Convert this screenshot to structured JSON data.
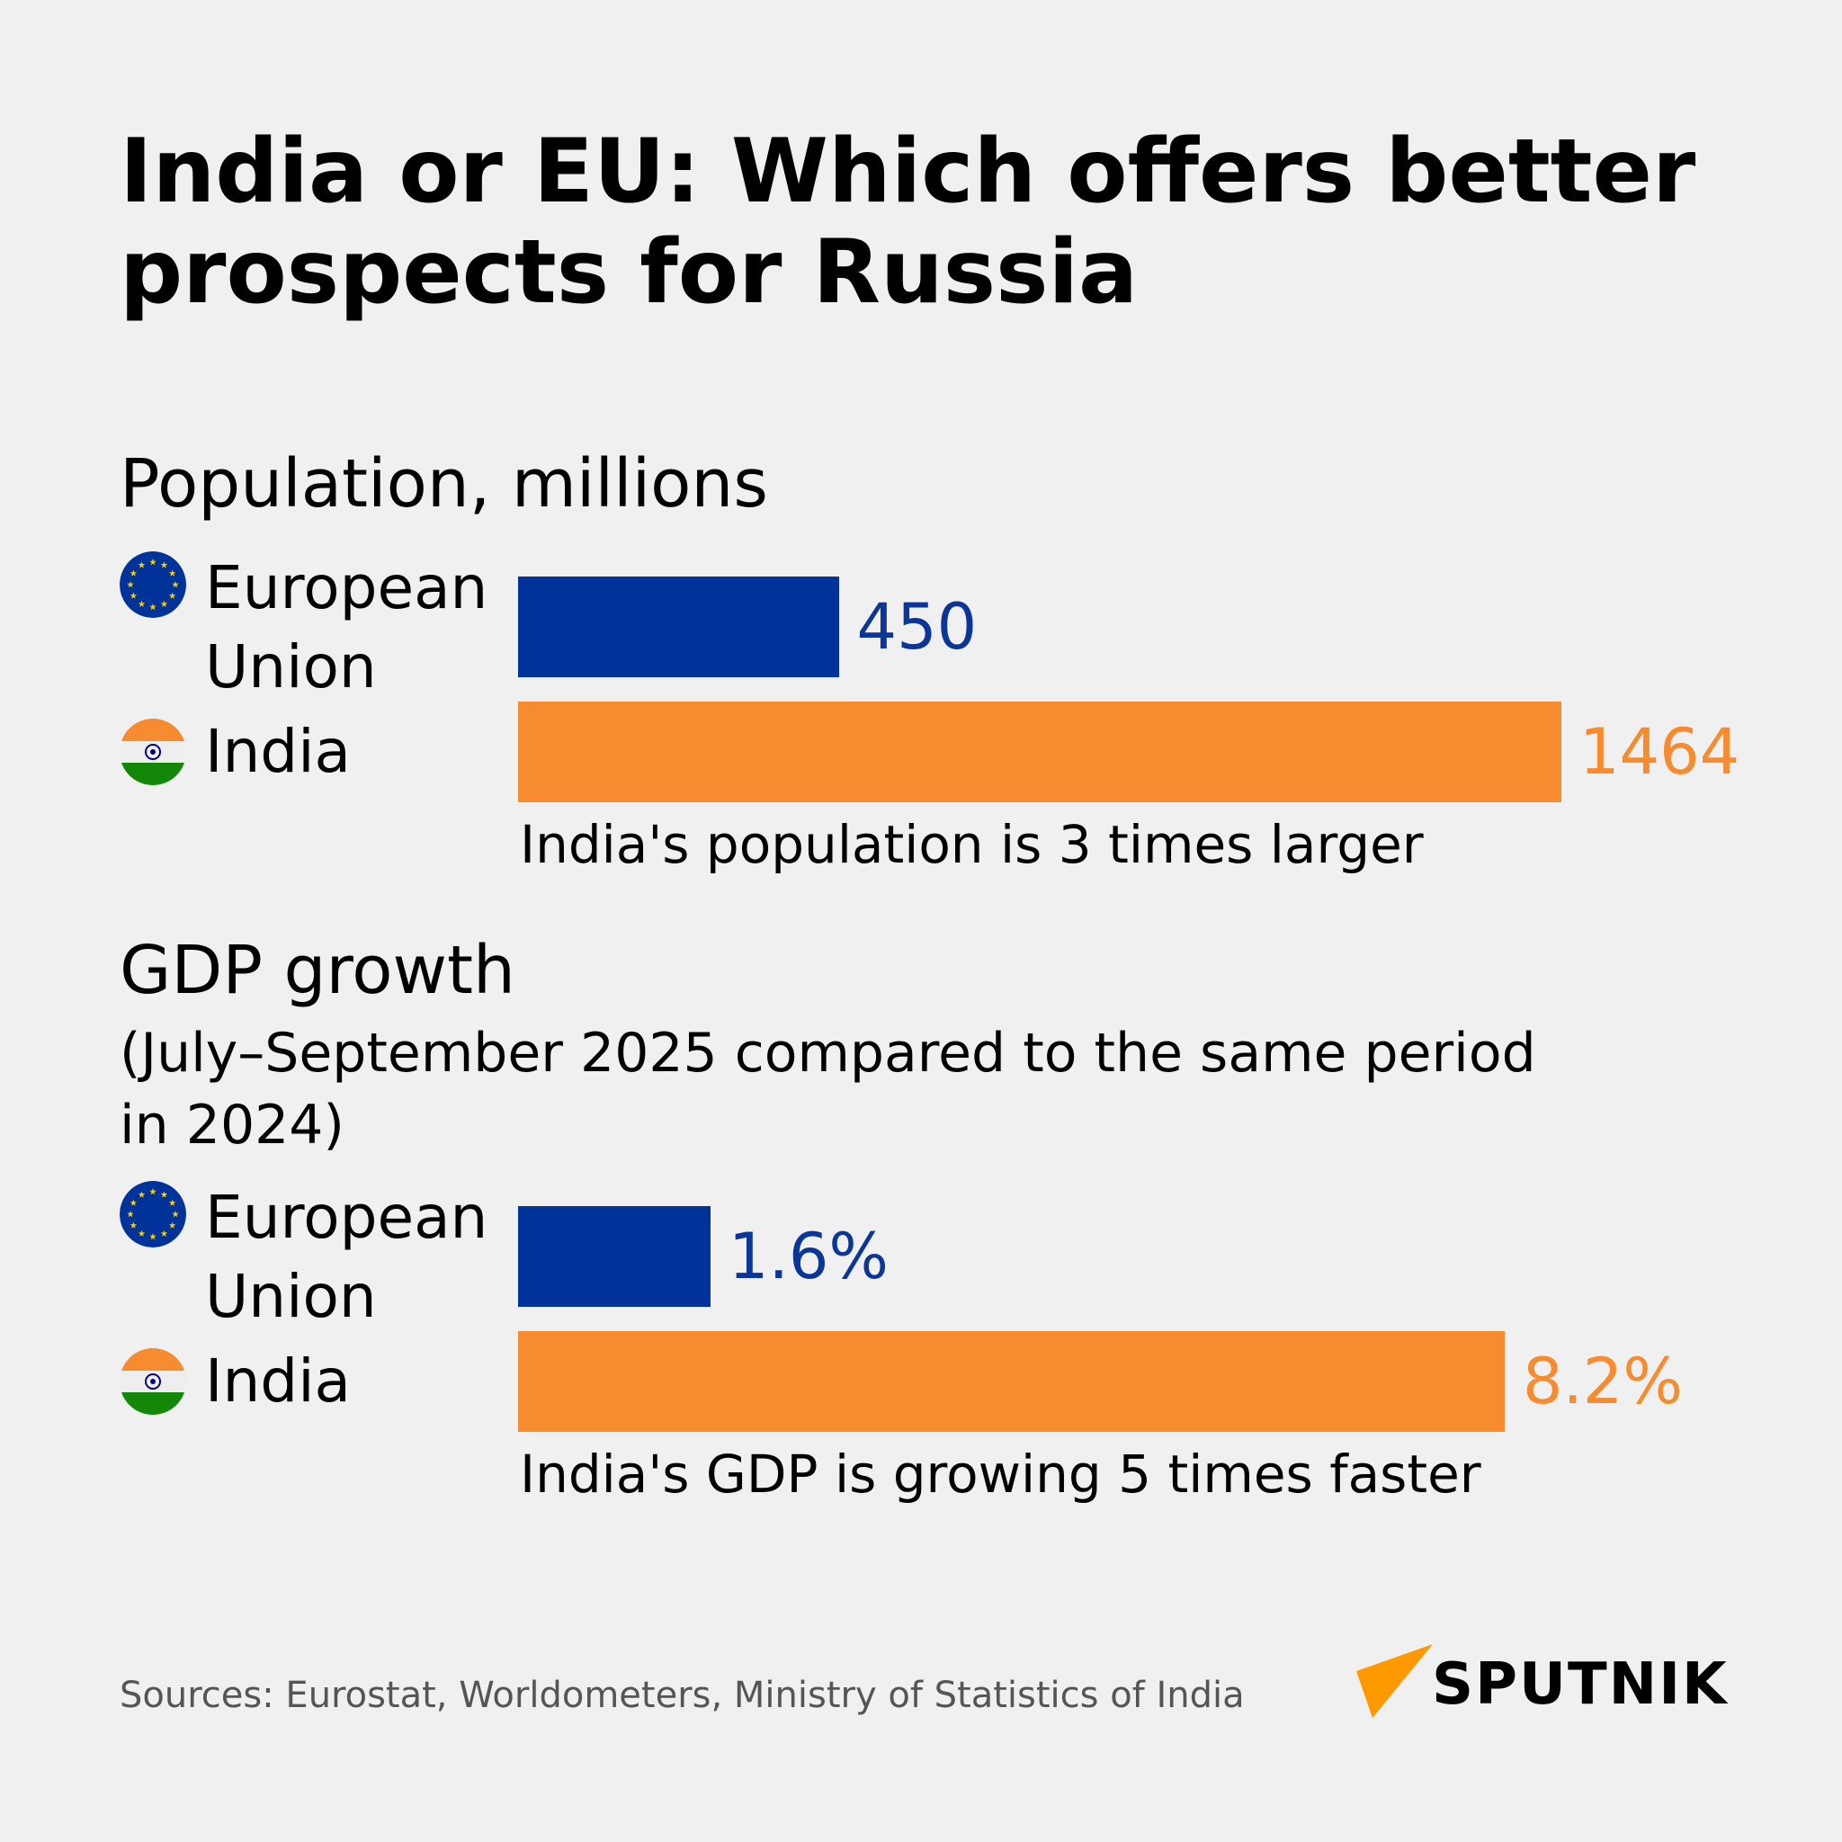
{
  "title": "India or EU: Which offers better prospects for Russia",
  "colors": {
    "eu": "#003399",
    "india": "#f68b2f",
    "eu_text": "#0b3596"
  },
  "chart_data": [
    {
      "type": "bar",
      "orientation": "horizontal",
      "title": "Population, millions",
      "categories": [
        "European Union",
        "India"
      ],
      "values": [
        450,
        1464
      ],
      "value_labels": [
        "450",
        "1464"
      ],
      "caption": "India's population is 3 times larger"
    },
    {
      "type": "bar",
      "orientation": "horizontal",
      "title": "GDP growth",
      "subtitle": "(July–September 2025 compared to the same period in 2024)",
      "categories": [
        "European Union",
        "India"
      ],
      "values": [
        1.6,
        8.2
      ],
      "value_labels": [
        "1.6%",
        "8.2%"
      ],
      "caption": "India's GDP is growing 5 times faster"
    }
  ],
  "labels": {
    "eu_line1": "European",
    "eu_line2": "Union",
    "india": "India"
  },
  "icons": {
    "eu": "eu-flag-icon",
    "india": "india-flag-icon"
  },
  "sources": "Sources: Eurostat, Worldometers, Ministry of Statistics of India",
  "logo": "SPUTNIK"
}
